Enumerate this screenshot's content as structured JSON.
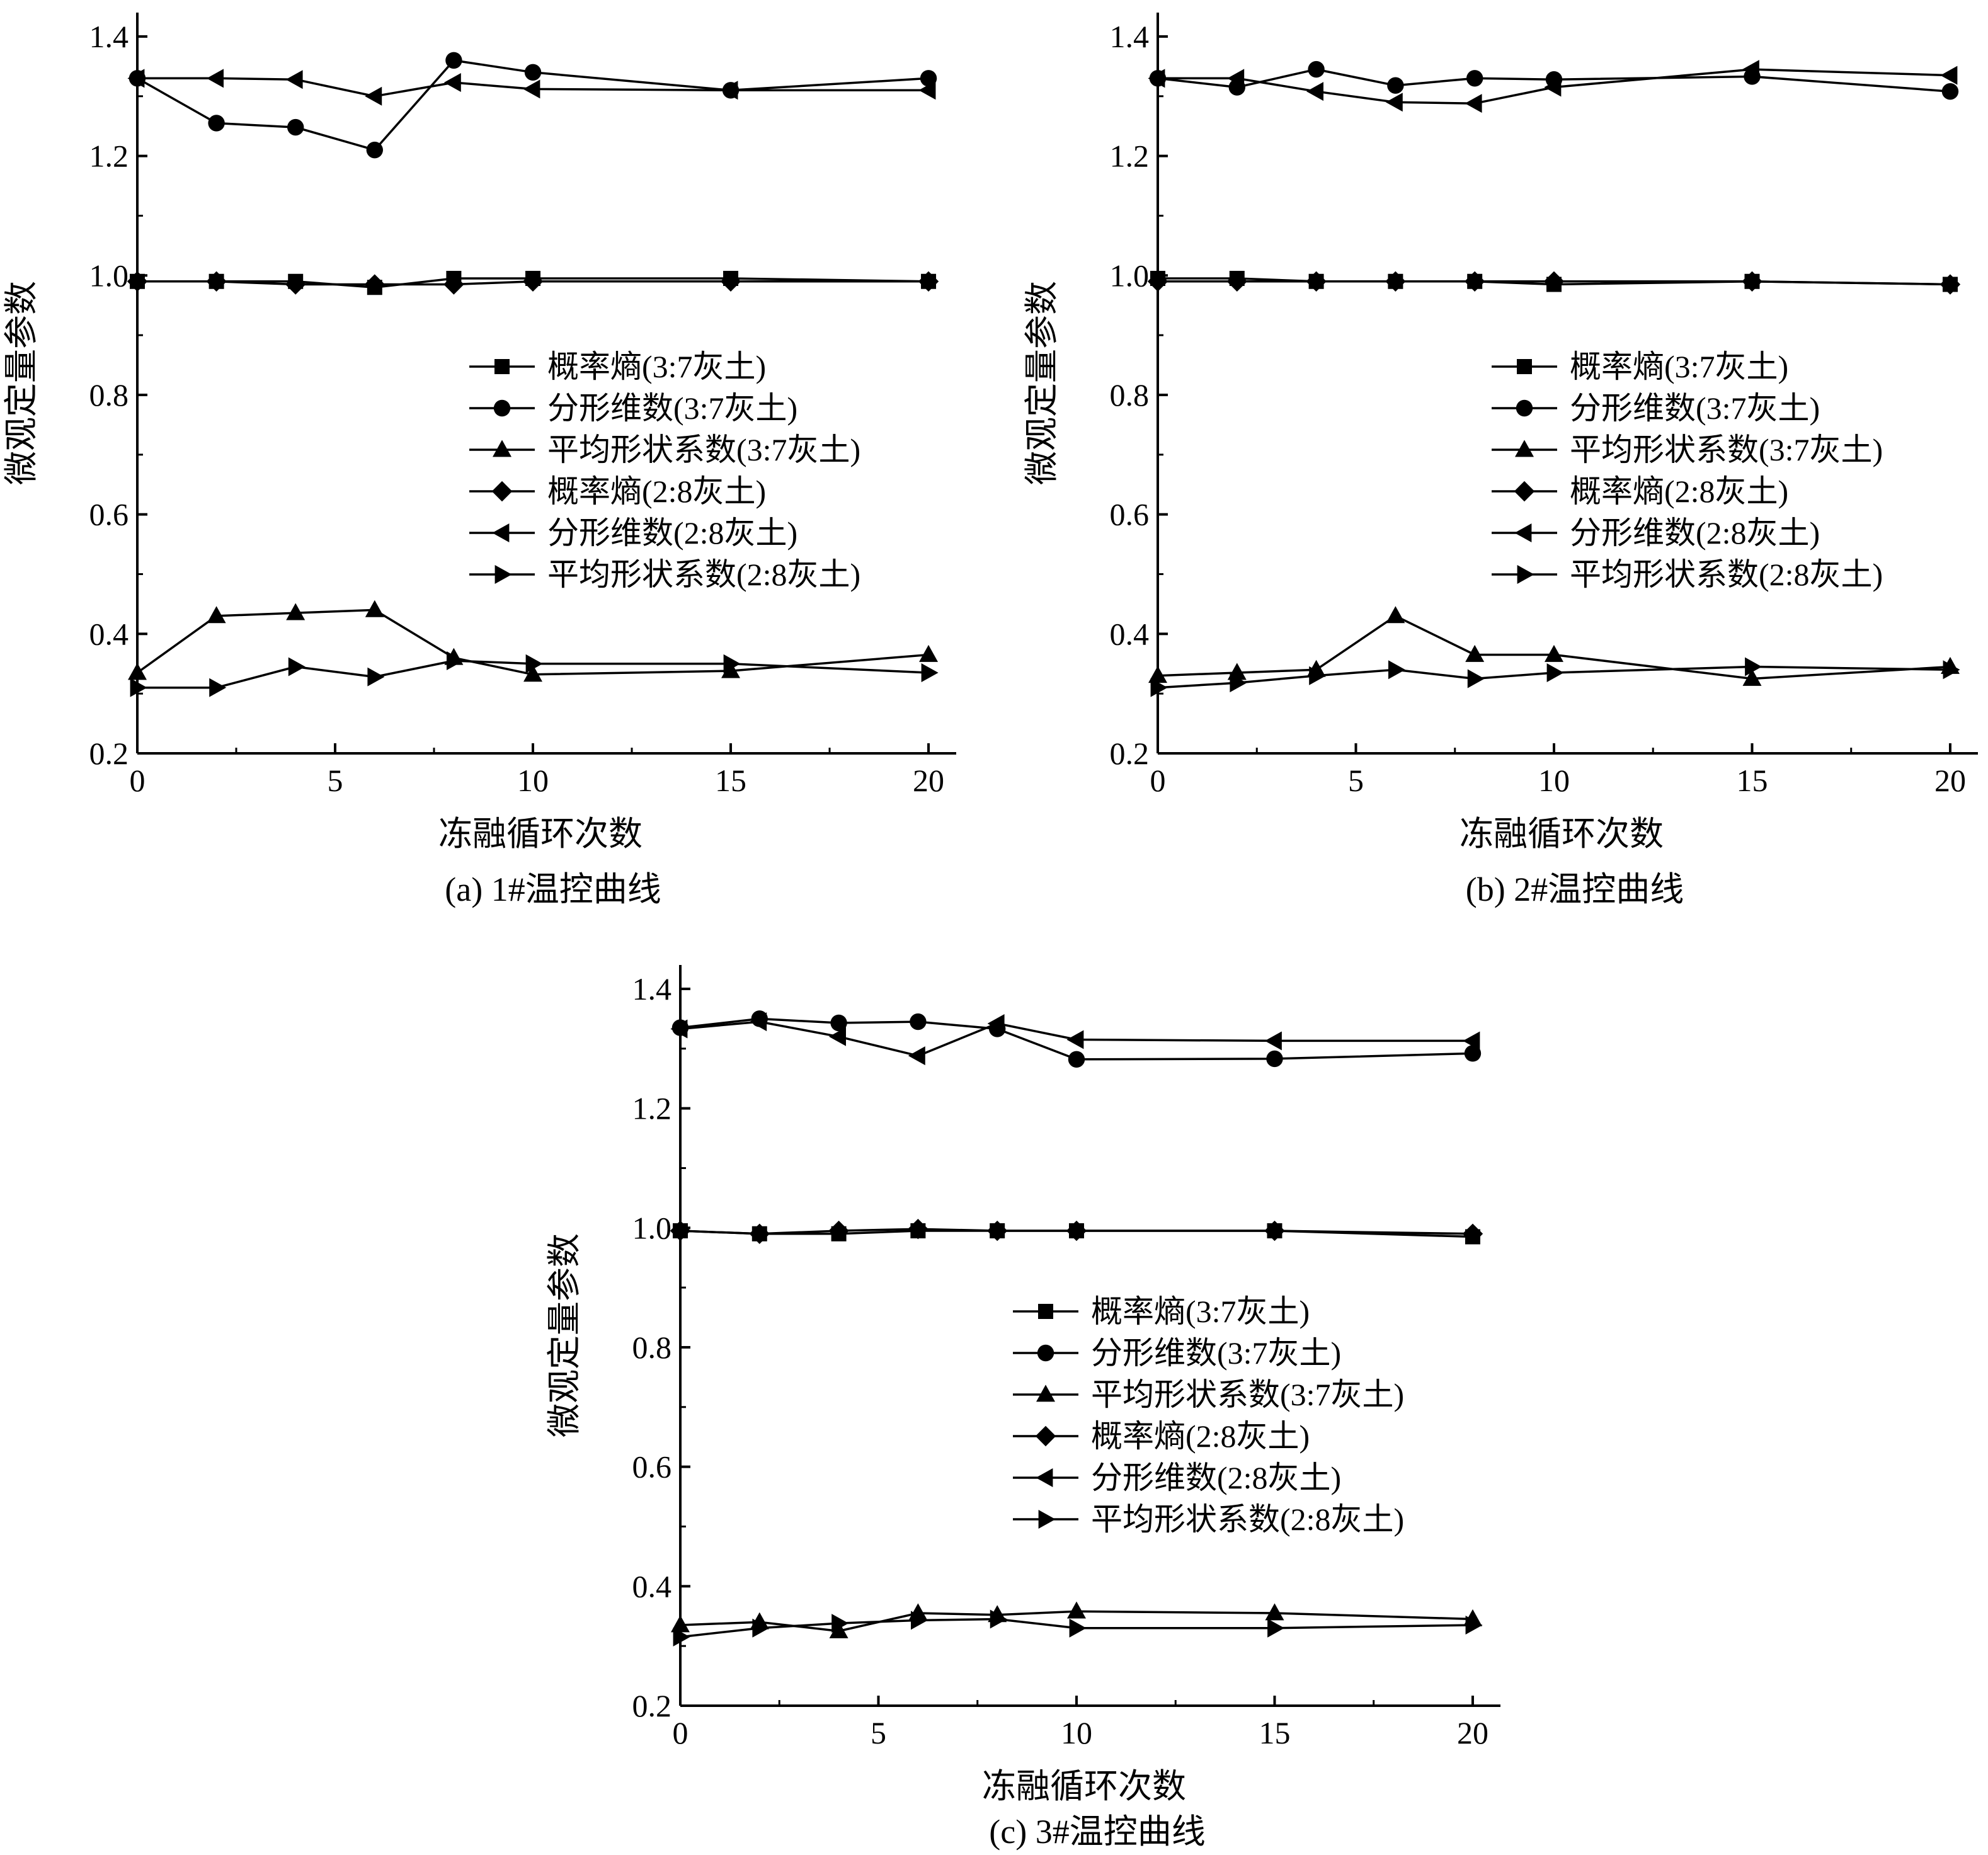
{
  "chart_data": [
    {
      "type": "line",
      "caption": "(a) 1#温控曲线",
      "xlabel": "冻融循环次数",
      "ylabel": "微观定量参数",
      "xlim": [
        0,
        20.7
      ],
      "ylim": [
        0.2,
        1.44
      ],
      "xticks": [
        0,
        5,
        10,
        15,
        20
      ],
      "xtick_labels": [
        "0",
        "5",
        "10",
        "15",
        "20"
      ],
      "yticks": [
        0.2,
        0.4,
        0.6,
        0.8,
        1.0,
        1.2,
        1.4
      ],
      "ytick_labels": [
        "0.2",
        "0.4",
        "0.6",
        "0.8",
        "1.0",
        "1.2",
        "1.4"
      ],
      "legend_position": "center-right",
      "x": [
        0,
        2,
        4,
        6,
        8,
        10,
        15,
        20
      ],
      "series": [
        {
          "name": "概率熵(3:7灰土)",
          "marker": "square",
          "values": [
            0.99,
            0.99,
            0.99,
            0.98,
            0.995,
            0.995,
            0.995,
            0.99
          ]
        },
        {
          "name": "分形维数(3:7灰土)",
          "marker": "circle",
          "values": [
            1.33,
            1.255,
            1.248,
            1.21,
            1.36,
            1.34,
            1.31,
            1.33
          ]
        },
        {
          "name": "平均形状系数(3:7灰土)",
          "marker": "triangle-up",
          "values": [
            0.335,
            0.43,
            0.435,
            0.44,
            0.36,
            0.332,
            0.338,
            0.365
          ]
        },
        {
          "name": "概率熵(2:8灰土)",
          "marker": "diamond",
          "values": [
            0.99,
            0.99,
            0.985,
            0.985,
            0.985,
            0.99,
            0.99,
            0.99
          ]
        },
        {
          "name": "分形维数(2:8灰土)",
          "marker": "triangle-left",
          "values": [
            1.33,
            1.33,
            1.328,
            1.3,
            1.323,
            1.312,
            1.31,
            1.31
          ]
        },
        {
          "name": "平均形状系数(2:8灰土)",
          "marker": "triangle-right",
          "values": [
            0.31,
            0.31,
            0.345,
            0.328,
            0.355,
            0.35,
            0.35,
            0.335
          ]
        }
      ]
    },
    {
      "type": "line",
      "caption": "(b) 2#温控曲线",
      "xlabel": "冻融循环次数",
      "ylabel": "微观定量参数",
      "xlim": [
        0,
        20.7
      ],
      "ylim": [
        0.2,
        1.44
      ],
      "xticks": [
        0,
        5,
        10,
        15,
        20
      ],
      "xtick_labels": [
        "0",
        "5",
        "10",
        "15",
        "20"
      ],
      "yticks": [
        0.2,
        0.4,
        0.6,
        0.8,
        1.0,
        1.2,
        1.4
      ],
      "ytick_labels": [
        "0.2",
        "0.4",
        "0.6",
        "0.8",
        "1.0",
        "1.2",
        "1.4"
      ],
      "legend_position": "center-right",
      "x": [
        0,
        2,
        4,
        6,
        8,
        10,
        15,
        20
      ],
      "series": [
        {
          "name": "概率熵(3:7灰土)",
          "marker": "square",
          "values": [
            0.995,
            0.995,
            0.99,
            0.99,
            0.99,
            0.985,
            0.99,
            0.985
          ]
        },
        {
          "name": "分形维数(3:7灰土)",
          "marker": "circle",
          "values": [
            1.33,
            1.315,
            1.345,
            1.318,
            1.33,
            1.328,
            1.333,
            1.308
          ]
        },
        {
          "name": "平均形状系数(3:7灰土)",
          "marker": "triangle-up",
          "values": [
            0.33,
            0.335,
            0.34,
            0.43,
            0.365,
            0.365,
            0.325,
            0.345
          ]
        },
        {
          "name": "概率熵(2:8灰土)",
          "marker": "diamond",
          "values": [
            0.99,
            0.99,
            0.99,
            0.99,
            0.99,
            0.99,
            0.99,
            0.985
          ]
        },
        {
          "name": "分形维数(2:8灰土)",
          "marker": "triangle-left",
          "values": [
            1.33,
            1.33,
            1.308,
            1.29,
            1.288,
            1.315,
            1.345,
            1.335
          ]
        },
        {
          "name": "平均形状系数(2:8灰土)",
          "marker": "triangle-right",
          "values": [
            0.31,
            0.318,
            0.33,
            0.34,
            0.325,
            0.335,
            0.345,
            0.34
          ]
        }
      ]
    },
    {
      "type": "line",
      "caption": "(c) 3#温控曲线",
      "xlabel": "冻融循环次数",
      "ylabel": "微观定量参数",
      "xlim": [
        0,
        20.7
      ],
      "ylim": [
        0.2,
        1.44
      ],
      "xticks": [
        0,
        5,
        10,
        15,
        20
      ],
      "xtick_labels": [
        "0",
        "5",
        "10",
        "15",
        "20"
      ],
      "yticks": [
        0.2,
        0.4,
        0.6,
        0.8,
        1.0,
        1.2,
        1.4
      ],
      "ytick_labels": [
        "0.2",
        "0.4",
        "0.6",
        "0.8",
        "1.0",
        "1.2",
        "1.4"
      ],
      "legend_position": "center-right",
      "x": [
        0,
        2,
        4,
        6,
        8,
        10,
        15,
        20
      ],
      "series": [
        {
          "name": "概率熵(3:7灰土)",
          "marker": "square",
          "values": [
            0.995,
            0.99,
            0.99,
            0.995,
            0.995,
            0.995,
            0.995,
            0.985
          ]
        },
        {
          "name": "分形维数(3:7灰土)",
          "marker": "circle",
          "values": [
            1.335,
            1.35,
            1.343,
            1.345,
            1.333,
            1.282,
            1.283,
            1.292
          ]
        },
        {
          "name": "平均形状系数(3:7灰土)",
          "marker": "triangle-up",
          "values": [
            0.335,
            0.34,
            0.325,
            0.355,
            0.352,
            0.358,
            0.355,
            0.345
          ]
        },
        {
          "name": "概率熵(2:8灰土)",
          "marker": "diamond",
          "values": [
            0.995,
            0.99,
            0.995,
            0.998,
            0.995,
            0.995,
            0.995,
            0.99
          ]
        },
        {
          "name": "分形维数(2:8灰土)",
          "marker": "triangle-left",
          "values": [
            1.333,
            1.345,
            1.32,
            1.288,
            1.342,
            1.315,
            1.313,
            1.313
          ]
        },
        {
          "name": "平均形状系数(2:8灰土)",
          "marker": "triangle-right",
          "values": [
            0.315,
            0.33,
            0.338,
            0.343,
            0.345,
            0.33,
            0.33,
            0.335
          ]
        }
      ]
    }
  ]
}
